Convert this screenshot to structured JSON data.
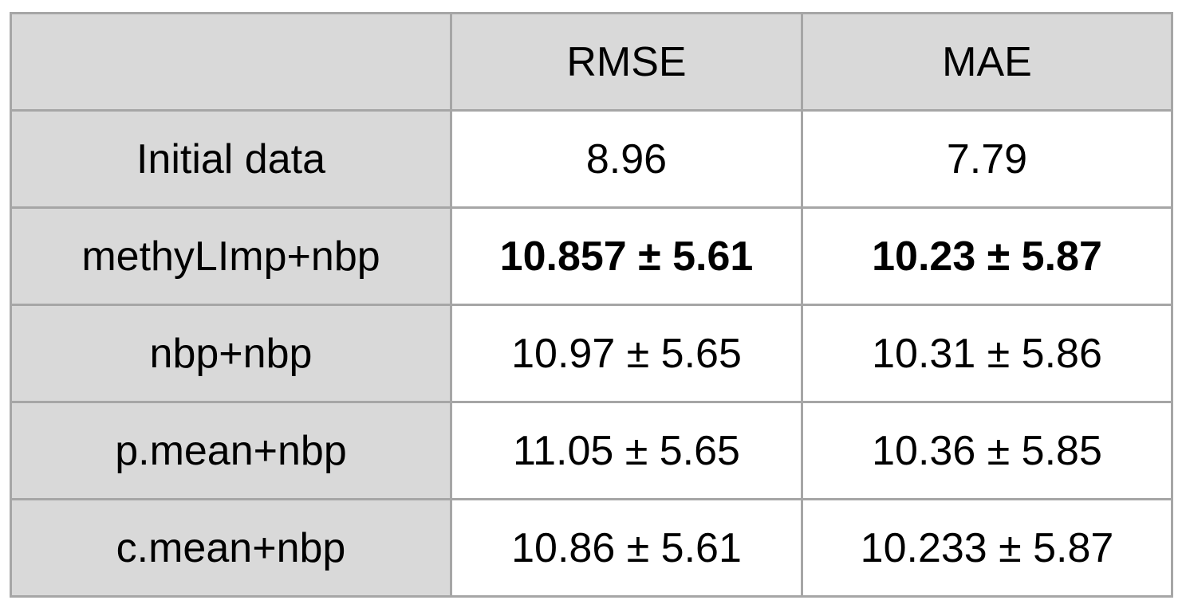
{
  "table": {
    "headers": [
      "",
      "RMSE",
      "MAE"
    ],
    "rows": [
      {
        "label": "Initial data",
        "rmse": "8.96",
        "mae": "7.79",
        "bold": false
      },
      {
        "label": "methyLImp+nbp",
        "rmse": "10.857 ± 5.61",
        "mae": "10.23 ± 5.87",
        "bold": true
      },
      {
        "label": "nbp+nbp",
        "rmse": "10.97 ± 5.65",
        "mae": "10.31 ± 5.86",
        "bold": false
      },
      {
        "label": "p.mean+nbp",
        "rmse": "11.05 ± 5.65",
        "mae": "10.36 ± 5.85",
        "bold": false
      },
      {
        "label": "c.mean+nbp",
        "rmse": "10.86 ± 5.61",
        "mae": "10.233 ± 5.87",
        "bold": false
      }
    ]
  },
  "colors": {
    "header_bg": "#d9d9d9",
    "cell_bg": "#ffffff",
    "border": "#a6a6a6"
  }
}
